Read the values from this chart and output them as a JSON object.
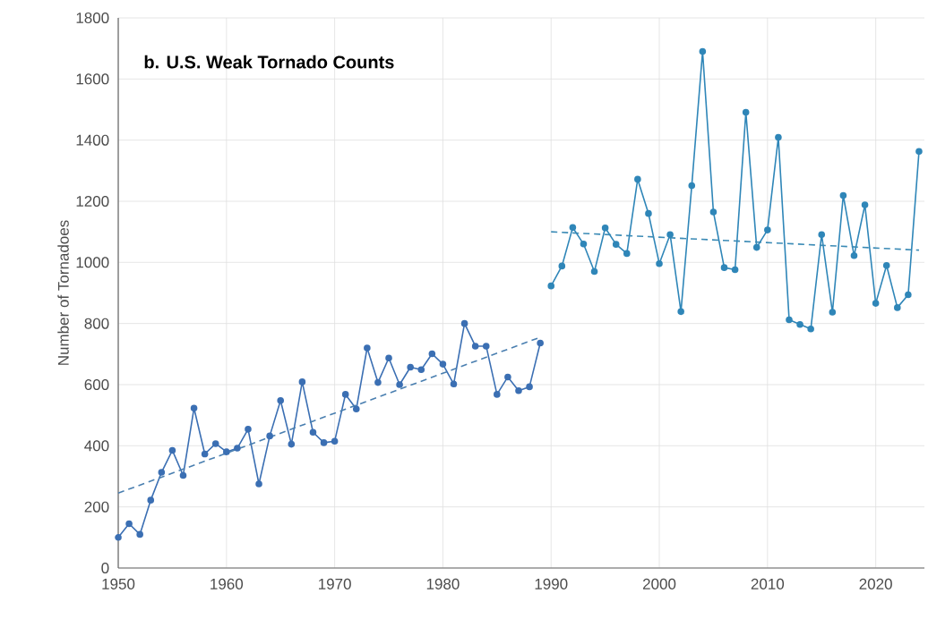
{
  "chart_data": {
    "type": "line",
    "title": "b. U.S. Weak Tornado Counts",
    "ylabel": "Number of Tornadoes",
    "xlim": [
      1950,
      2024.5
    ],
    "ylim": [
      0,
      1800
    ],
    "xticks": [
      1950,
      1960,
      1970,
      1980,
      1990,
      2000,
      2010,
      2020
    ],
    "yticks": [
      0,
      200,
      400,
      600,
      800,
      1000,
      1200,
      1400,
      1600,
      1800
    ],
    "grid": true,
    "series": [
      {
        "color": "#3b6fb3",
        "marker": "circle",
        "line_style": "solid",
        "x": [
          1950,
          1951,
          1952,
          1953,
          1954,
          1955,
          1956,
          1957,
          1958,
          1959,
          1960,
          1961,
          1962,
          1963,
          1964,
          1965,
          1966,
          1967,
          1968,
          1969,
          1970,
          1971,
          1972,
          1973,
          1974,
          1975,
          1976,
          1977,
          1978,
          1979,
          1980,
          1981,
          1982,
          1983,
          1984,
          1985,
          1986,
          1987,
          1988,
          1989
        ],
        "values": [
          100,
          145,
          110,
          222,
          313,
          385,
          303,
          523,
          373,
          407,
          380,
          392,
          454,
          275,
          432,
          548,
          405,
          609,
          444,
          410,
          415,
          568,
          520,
          720,
          607,
          687,
          600,
          657,
          649,
          701,
          667,
          602,
          800,
          726,
          726,
          568,
          625,
          580,
          593,
          736
        ]
      },
      {
        "color": "#2f86b8",
        "marker": "circle",
        "line_style": "solid",
        "x": [
          1990,
          1991,
          1992,
          1993,
          1994,
          1995,
          1996,
          1997,
          1998,
          1999,
          2000,
          2001,
          2002,
          2003,
          2004,
          2005,
          2006,
          2007,
          2008,
          2009,
          2010,
          2011,
          2012,
          2013,
          2014,
          2015,
          2016,
          2017,
          2018,
          2019,
          2020,
          2021,
          2022,
          2023,
          2024
        ],
        "values": [
          923,
          988,
          1114,
          1060,
          970,
          1113,
          1059,
          1029,
          1272,
          1160,
          996,
          1091,
          839,
          1251,
          1690,
          1165,
          983,
          976,
          1491,
          1049,
          1106,
          1409,
          812,
          797,
          782,
          1091,
          837,
          1219,
          1022,
          1188,
          866,
          990,
          852,
          894,
          1363
        ]
      },
      {
        "color": "#4a7fb0",
        "marker": "none",
        "line_style": "dashed",
        "x": [
          1950,
          1989
        ],
        "values": [
          245,
          755
        ]
      },
      {
        "color": "#3a8ab5",
        "marker": "none",
        "line_style": "dashed",
        "x": [
          1990,
          2024
        ],
        "values": [
          1100,
          1040
        ]
      }
    ]
  }
}
